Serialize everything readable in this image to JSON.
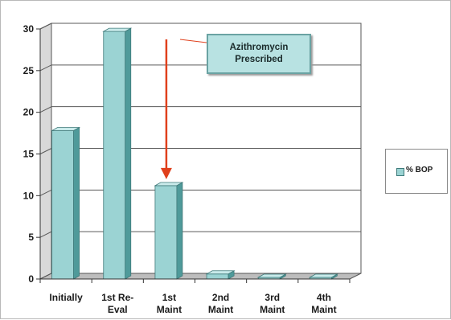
{
  "chart_data": {
    "type": "bar",
    "categories": [
      [
        "Initially"
      ],
      [
        "1st Re-",
        "Eval"
      ],
      [
        "1st",
        "Maint"
      ],
      [
        "2nd",
        "Maint"
      ],
      [
        "3rd",
        "Maint"
      ],
      [
        "4th",
        "Maint"
      ]
    ],
    "series": [
      {
        "name": "% BOP",
        "values": [
          17.8,
          29.7,
          11.2,
          0.6,
          0,
          0
        ]
      }
    ],
    "title": "",
    "xlabel": "",
    "ylabel": "",
    "ylim": [
      0,
      30
    ],
    "yticks": [
      "0",
      "5",
      "10",
      "15",
      "20",
      "25",
      "30"
    ],
    "grid": true,
    "legend_position": "right",
    "bar_color": "#9bd3d3",
    "annotation": {
      "lines": [
        "Azithromycin",
        "Prescribed"
      ],
      "points_to_category": 2,
      "arrow_color": "#e0401c"
    }
  }
}
